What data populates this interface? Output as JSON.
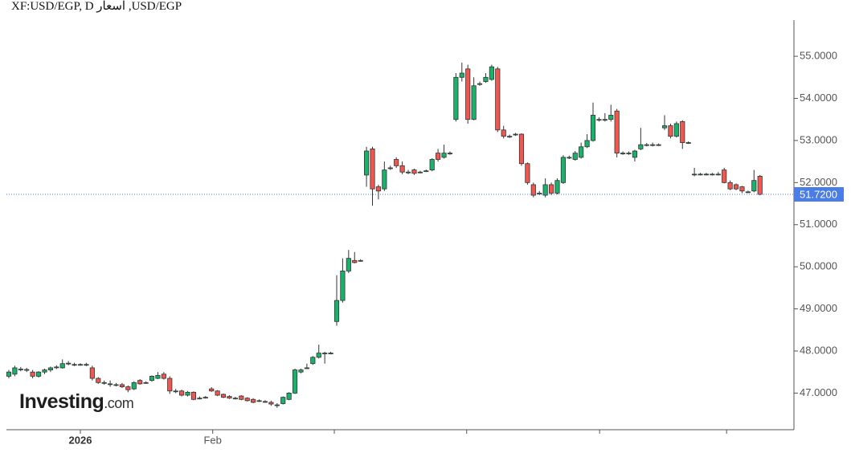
{
  "chart_data": {
    "type": "candlestick",
    "title": "USD/EGP, اسعار XF:USD/EGP, D",
    "watermark": "Investing",
    "watermark_suffix": ".com",
    "up_color": "#19b26b",
    "down_color": "#f2574f",
    "ohlc": [
      [
        47.4,
        47.55,
        47.35,
        47.5
      ],
      [
        47.45,
        47.65,
        47.4,
        47.6
      ],
      [
        47.57,
        47.62,
        47.52,
        47.57
      ],
      [
        47.55,
        47.6,
        47.5,
        47.56
      ],
      [
        47.5,
        47.55,
        47.35,
        47.4
      ],
      [
        47.4,
        47.52,
        47.37,
        47.5
      ],
      [
        47.5,
        47.58,
        47.45,
        47.55
      ],
      [
        47.55,
        47.63,
        47.5,
        47.6
      ],
      [
        47.62,
        47.66,
        47.57,
        47.62
      ],
      [
        47.6,
        47.8,
        47.58,
        47.7
      ],
      [
        47.7,
        47.76,
        47.66,
        47.71
      ],
      [
        47.68,
        47.72,
        47.64,
        47.68
      ],
      [
        47.68,
        47.71,
        47.65,
        47.68
      ],
      [
        47.68,
        47.72,
        47.64,
        47.68
      ],
      [
        47.6,
        47.65,
        47.3,
        47.35
      ],
      [
        47.35,
        47.38,
        47.22,
        47.25
      ],
      [
        47.25,
        47.3,
        47.2,
        47.25
      ],
      [
        47.22,
        47.3,
        47.15,
        47.22
      ],
      [
        47.2,
        47.24,
        47.16,
        47.2
      ],
      [
        47.2,
        47.24,
        47.12,
        47.15
      ],
      [
        47.15,
        47.18,
        47.02,
        47.08
      ],
      [
        47.1,
        47.28,
        47.07,
        47.25
      ],
      [
        47.3,
        47.33,
        47.2,
        47.22
      ],
      [
        47.25,
        47.28,
        47.22,
        47.25
      ],
      [
        47.3,
        47.42,
        47.27,
        47.4
      ],
      [
        47.35,
        47.5,
        47.33,
        47.42
      ],
      [
        47.45,
        47.5,
        47.32,
        47.35
      ],
      [
        47.35,
        47.4,
        46.98,
        47.05
      ],
      [
        47.05,
        47.1,
        47.0,
        47.05
      ],
      [
        47.05,
        47.08,
        46.92,
        46.95
      ],
      [
        46.95,
        47.05,
        46.92,
        47.02
      ],
      [
        47.02,
        47.04,
        46.83,
        46.85
      ],
      [
        46.88,
        46.92,
        46.85,
        46.88
      ],
      [
        46.9,
        46.93,
        46.87,
        46.9
      ],
      [
        47.1,
        47.14,
        47.03,
        47.05
      ],
      [
        47.05,
        47.07,
        46.93,
        46.95
      ],
      [
        46.97,
        46.99,
        46.88,
        46.9
      ],
      [
        46.92,
        46.95,
        46.86,
        46.88
      ],
      [
        46.88,
        46.91,
        46.85,
        46.88
      ],
      [
        46.93,
        46.95,
        46.83,
        46.85
      ],
      [
        46.88,
        46.9,
        46.8,
        46.82
      ],
      [
        46.85,
        46.88,
        46.76,
        46.78
      ],
      [
        46.82,
        46.85,
        46.79,
        46.82
      ],
      [
        46.8,
        46.83,
        46.77,
        46.8
      ],
      [
        46.78,
        46.82,
        46.7,
        46.74
      ],
      [
        46.72,
        46.76,
        46.65,
        46.72
      ],
      [
        46.75,
        46.92,
        46.73,
        46.9
      ],
      [
        46.85,
        47.02,
        46.83,
        47.0
      ],
      [
        47.0,
        47.58,
        46.98,
        47.55
      ],
      [
        47.5,
        47.58,
        47.47,
        47.55
      ],
      [
        47.6,
        47.7,
        47.57,
        47.6
      ],
      [
        47.7,
        47.88,
        47.67,
        47.85
      ],
      [
        47.85,
        48.15,
        47.82,
        47.95
      ],
      [
        47.95,
        47.98,
        47.7,
        47.95
      ],
      [
        47.95,
        47.98,
        47.92,
        47.95
      ],
      [
        48.7,
        49.8,
        48.6,
        49.2
      ],
      [
        49.2,
        50.2,
        49.15,
        49.9
      ],
      [
        49.9,
        50.4,
        49.85,
        50.2
      ],
      [
        50.15,
        50.35,
        50.08,
        50.1
      ],
      [
        50.15,
        50.18,
        50.12,
        50.15
      ],
      [
        52.18,
        52.85,
        51.9,
        52.75
      ],
      [
        52.8,
        52.85,
        51.45,
        51.85
      ],
      [
        51.9,
        51.95,
        51.6,
        51.8
      ],
      [
        51.85,
        52.5,
        51.8,
        52.3
      ],
      [
        52.35,
        52.4,
        52.3,
        52.35
      ],
      [
        52.55,
        52.6,
        52.35,
        52.4
      ],
      [
        52.4,
        52.5,
        52.2,
        52.25
      ],
      [
        52.25,
        52.3,
        52.2,
        52.25
      ],
      [
        52.3,
        52.33,
        52.18,
        52.22
      ],
      [
        52.25,
        52.28,
        52.22,
        52.25
      ],
      [
        52.28,
        52.31,
        52.25,
        52.28
      ],
      [
        52.3,
        52.58,
        52.27,
        52.55
      ],
      [
        52.7,
        52.8,
        52.5,
        52.55
      ],
      [
        52.6,
        52.9,
        52.57,
        52.7
      ],
      [
        52.7,
        52.74,
        52.66,
        52.7
      ],
      [
        53.5,
        54.6,
        53.45,
        54.5
      ],
      [
        54.5,
        54.85,
        54.4,
        54.6
      ],
      [
        54.7,
        54.8,
        53.4,
        53.5
      ],
      [
        53.5,
        54.5,
        53.48,
        54.3
      ],
      [
        54.35,
        54.4,
        54.3,
        54.35
      ],
      [
        54.4,
        54.6,
        54.37,
        54.5
      ],
      [
        54.45,
        54.8,
        54.42,
        54.75
      ],
      [
        54.7,
        54.75,
        53.2,
        53.25
      ],
      [
        53.25,
        53.35,
        53.05,
        53.1
      ],
      [
        53.1,
        53.14,
        53.06,
        53.1
      ],
      [
        53.15,
        53.18,
        53.11,
        53.15
      ],
      [
        53.15,
        53.17,
        52.4,
        52.45
      ],
      [
        52.45,
        52.48,
        51.95,
        52.0
      ],
      [
        51.95,
        52.0,
        51.65,
        51.7
      ],
      [
        51.75,
        51.8,
        51.7,
        51.75
      ],
      [
        51.7,
        52.1,
        51.65,
        51.95
      ],
      [
        51.95,
        52.0,
        51.7,
        51.75
      ],
      [
        51.75,
        52.1,
        51.72,
        52.05
      ],
      [
        52.0,
        52.65,
        51.97,
        52.6
      ],
      [
        52.6,
        52.64,
        52.56,
        52.6
      ],
      [
        52.55,
        52.75,
        52.52,
        52.7
      ],
      [
        52.6,
        52.95,
        52.57,
        52.85
      ],
      [
        52.85,
        53.15,
        52.82,
        53.0
      ],
      [
        53.0,
        53.9,
        52.97,
        53.6
      ],
      [
        53.5,
        53.55,
        53.45,
        53.5
      ],
      [
        53.5,
        53.65,
        53.45,
        53.5
      ],
      [
        53.5,
        53.85,
        53.45,
        53.6
      ],
      [
        53.7,
        53.75,
        52.6,
        52.7
      ],
      [
        52.7,
        52.74,
        52.66,
        52.7
      ],
      [
        52.7,
        52.74,
        52.66,
        52.7
      ],
      [
        52.6,
        52.78,
        52.5,
        52.75
      ],
      [
        52.8,
        53.3,
        52.77,
        52.9
      ],
      [
        52.9,
        52.94,
        52.86,
        52.9
      ],
      [
        52.9,
        52.95,
        52.86,
        52.9
      ],
      [
        52.9,
        52.93,
        52.87,
        52.9
      ],
      [
        53.3,
        53.6,
        53.25,
        53.35
      ],
      [
        53.35,
        53.4,
        53.05,
        53.1
      ],
      [
        53.1,
        53.45,
        53.07,
        53.4
      ],
      [
        53.45,
        53.48,
        52.8,
        52.95
      ],
      [
        52.95,
        52.98,
        52.92,
        52.95
      ],
      [
        52.2,
        52.35,
        52.15,
        52.2
      ],
      [
        52.2,
        52.23,
        52.17,
        52.2
      ],
      [
        52.2,
        52.23,
        52.17,
        52.2
      ],
      [
        52.2,
        52.23,
        52.17,
        52.2
      ],
      [
        52.2,
        52.25,
        52.17,
        52.2
      ],
      [
        52.3,
        52.35,
        51.98,
        52.0
      ],
      [
        52.0,
        52.05,
        51.82,
        51.85
      ],
      [
        51.95,
        51.98,
        51.82,
        51.85
      ],
      [
        51.9,
        51.92,
        51.75,
        51.8
      ],
      [
        51.78,
        51.81,
        51.75,
        51.78
      ],
      [
        51.8,
        52.3,
        51.77,
        52.05
      ],
      [
        52.15,
        52.18,
        51.7,
        51.72
      ]
    ],
    "xlim": [
      -0.4,
      131.7
    ],
    "xticks": [
      {
        "value": 12.0,
        "label": "2026"
      },
      {
        "value": 34.2,
        "label": "Feb"
      },
      54.6,
      76.8,
      99.1,
      120.4
    ],
    "ylim": [
      46.13,
      55.86
    ],
    "yticks": [
      {
        "value": 47,
        "label": "47.0000"
      },
      {
        "value": 48,
        "label": "48.0000"
      },
      {
        "value": 49,
        "label": "49.0000"
      },
      {
        "value": 50,
        "label": "50.0000"
      },
      {
        "value": 51,
        "label": "51.0000"
      },
      {
        "value": 52,
        "label": "52.0000"
      },
      {
        "value": 53,
        "label": "53.0000"
      },
      {
        "value": 54,
        "label": "54.0000"
      },
      {
        "value": 55,
        "label": "55.0000"
      }
    ],
    "last_price": {
      "value": 51.72,
      "label": "51.7200"
    },
    "last_price_color": "#4a7de6"
  }
}
